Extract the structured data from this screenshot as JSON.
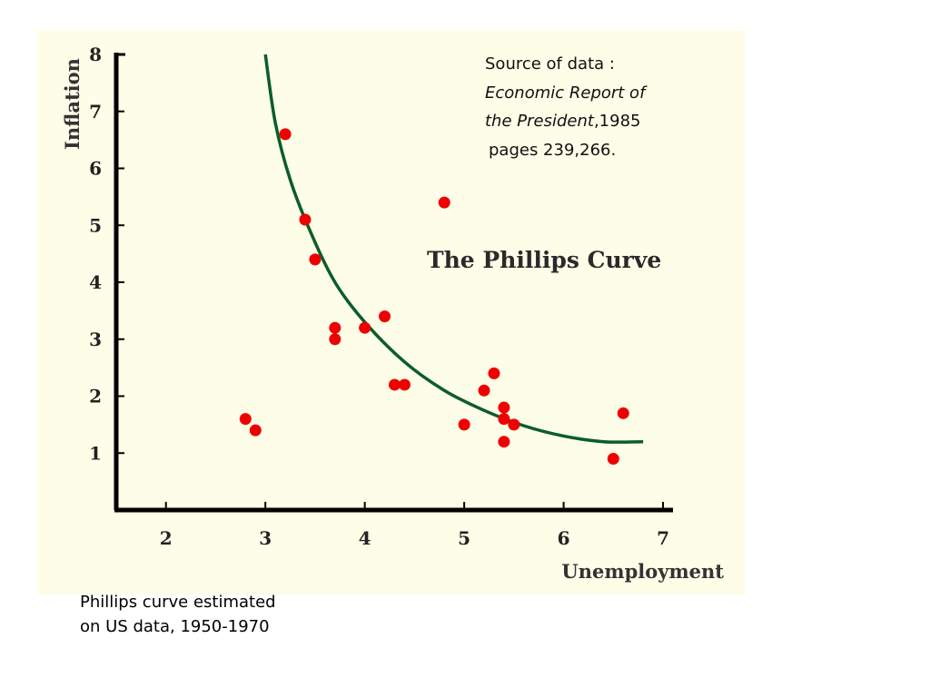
{
  "chart_data": {
    "type": "scatter",
    "title": "The Phillips Curve",
    "xlabel": "Unemployment",
    "ylabel": "Inflation",
    "xlim": [
      1.5,
      7.1
    ],
    "ylim": [
      0,
      8
    ],
    "x_ticks": [
      2,
      3,
      4,
      5,
      6,
      7
    ],
    "y_ticks": [
      1,
      2,
      3,
      4,
      5,
      6,
      7,
      8
    ],
    "grid": false,
    "background_color": "#fdfde8",
    "point_color": "#ee0000",
    "curve_color": "#0b5d2a",
    "source_note": {
      "line1": "Source of data :",
      "line2": "Economic Report of",
      "line3_italic": "the President",
      "line3_rest": ",1985",
      "line4": "pages 239,266."
    },
    "points": [
      {
        "x": 3.2,
        "y": 6.6
      },
      {
        "x": 3.4,
        "y": 5.1
      },
      {
        "x": 3.5,
        "y": 4.4
      },
      {
        "x": 3.7,
        "y": 3.2
      },
      {
        "x": 3.7,
        "y": 3.0
      },
      {
        "x": 4.0,
        "y": 3.2
      },
      {
        "x": 4.2,
        "y": 3.4
      },
      {
        "x": 4.3,
        "y": 2.2
      },
      {
        "x": 4.4,
        "y": 2.2
      },
      {
        "x": 4.8,
        "y": 5.4
      },
      {
        "x": 2.8,
        "y": 1.6
      },
      {
        "x": 2.9,
        "y": 1.4
      },
      {
        "x": 5.0,
        "y": 1.5
      },
      {
        "x": 5.2,
        "y": 2.1
      },
      {
        "x": 5.3,
        "y": 2.4
      },
      {
        "x": 5.4,
        "y": 1.8
      },
      {
        "x": 5.4,
        "y": 1.6
      },
      {
        "x": 5.5,
        "y": 1.5
      },
      {
        "x": 5.4,
        "y": 1.2
      },
      {
        "x": 6.5,
        "y": 0.9
      },
      {
        "x": 6.6,
        "y": 1.7
      }
    ],
    "fitted_curve": [
      {
        "x": 3.0,
        "y": 8.0
      },
      {
        "x": 3.1,
        "y": 6.8
      },
      {
        "x": 3.25,
        "y": 5.8
      },
      {
        "x": 3.45,
        "y": 4.9
      },
      {
        "x": 3.7,
        "y": 4.0
      },
      {
        "x": 4.0,
        "y": 3.3
      },
      {
        "x": 4.4,
        "y": 2.6
      },
      {
        "x": 4.8,
        "y": 2.1
      },
      {
        "x": 5.2,
        "y": 1.75
      },
      {
        "x": 5.6,
        "y": 1.48
      },
      {
        "x": 6.0,
        "y": 1.3
      },
      {
        "x": 6.4,
        "y": 1.2
      },
      {
        "x": 6.8,
        "y": 1.2
      }
    ]
  },
  "caption": {
    "line1": "Phillips curve estimated",
    "line2": "on US data, 1950-1970"
  }
}
